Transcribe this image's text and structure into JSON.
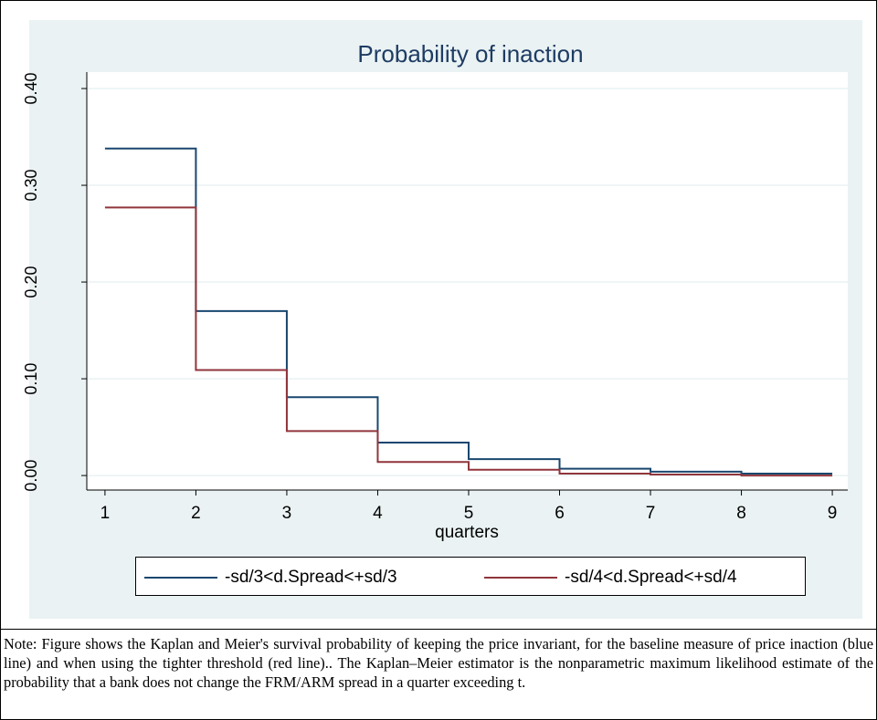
{
  "chart_data": {
    "type": "step",
    "title": "Probability of inaction",
    "x_label": "quarters",
    "x": [
      1,
      2,
      3,
      4,
      5,
      6,
      7,
      8,
      9
    ],
    "series": [
      {
        "name": "-sd/3<d.Spread<+sd/3",
        "color": "#1a476f",
        "values": [
          0.338,
          0.17,
          0.081,
          0.034,
          0.017,
          0.007,
          0.004,
          0.002,
          0.002
        ]
      },
      {
        "name": "-sd/4<d.Spread<+sd/4",
        "color": "#90353b",
        "values": [
          0.277,
          0.109,
          0.046,
          0.014,
          0.006,
          0.002,
          0.001,
          0.0,
          0.0
        ]
      }
    ],
    "xlim": [
      0.8,
      9.17
    ],
    "ylim": [
      -0.015,
      0.417
    ],
    "xticks": [
      1,
      2,
      3,
      4,
      5,
      6,
      7,
      8,
      9
    ],
    "yticks": [
      {
        "value": 0,
        "label": "0.00"
      },
      {
        "value": 0.1,
        "label": "0.10"
      },
      {
        "value": 0.2,
        "label": "0.20"
      },
      {
        "value": 0.3,
        "label": "0.30"
      },
      {
        "value": 0.4,
        "label": "0.40"
      }
    ],
    "grid": true,
    "legend": "bottom"
  },
  "note": "Note: Figure shows the Kaplan and Meier's survival probability of keeping the price invariant, for the baseline measure of price inaction (blue line) and when using the tighter threshold (red line).. The Kaplan–Meier estimator is the  nonparametric maximum likelihood estimate of  the probability that a bank does not change the FRM/ARM spread in a quarter exceeding t."
}
